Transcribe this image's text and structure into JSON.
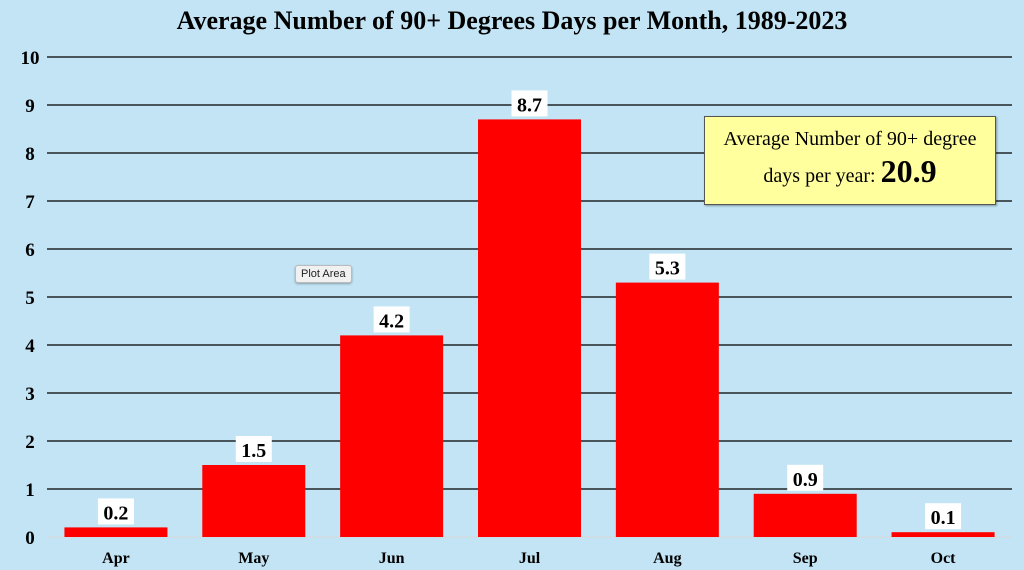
{
  "chart_data": {
    "type": "bar",
    "title": "Average Number of 90+ Degrees Days per Month, 1989-2023",
    "categories": [
      "Apr",
      "May",
      "Jun",
      "Jul",
      "Aug",
      "Sep",
      "Oct"
    ],
    "values": [
      0.2,
      1.5,
      4.2,
      8.7,
      5.3,
      0.9,
      0.1
    ],
    "data_labels": [
      "0.2",
      "1.5",
      "4.2",
      "8.7",
      "5.3",
      "0.9",
      "0.1"
    ],
    "xlabel": "",
    "ylabel": "",
    "ylim": [
      0,
      10
    ],
    "yticks": [
      0,
      1,
      2,
      3,
      4,
      5,
      6,
      7,
      8,
      9,
      10
    ],
    "grid": true,
    "bar_color": "#ff0000",
    "background_color": "#c2e4f4",
    "annotation": {
      "line1": "Average Number of 90+ degree",
      "line2": "days per year:",
      "value": "20.9"
    }
  },
  "tooltip": "Plot Area"
}
